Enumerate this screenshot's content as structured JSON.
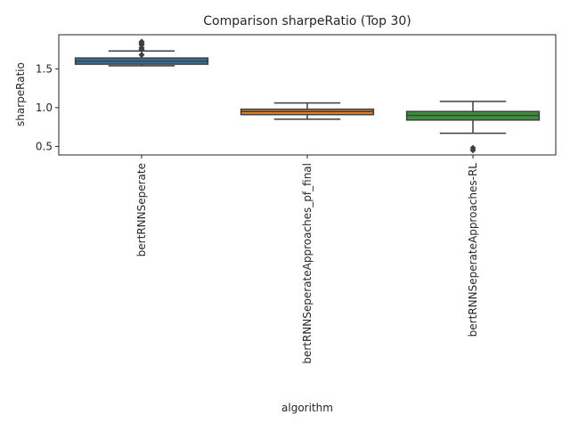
{
  "chart_data": {
    "type": "box",
    "title": "Comparison sharpeRatio (Top 30)",
    "xlabel": "algorithm",
    "ylabel": "sharpeRatio",
    "ylim": [
      0.39,
      1.94
    ],
    "yticks": [
      0.5,
      1.0,
      1.5
    ],
    "ytick_labels": [
      "0.5",
      "1.0",
      "1.5"
    ],
    "grid": false,
    "legend": "none",
    "categories": [
      "bertRNNSeperate",
      "bertRNNSeperateApproaches_pf_final",
      "bertRNNSeperateApproaches-RL"
    ],
    "colors": [
      "#3274a1",
      "#e1812c",
      "#3a923a"
    ],
    "boxes": [
      {
        "whisker_low": 1.54,
        "q1": 1.56,
        "median": 1.6,
        "q3": 1.64,
        "whisker_high": 1.73,
        "outliers": [
          1.68,
          1.75,
          1.77,
          1.81,
          1.83,
          1.85
        ]
      },
      {
        "whisker_low": 0.85,
        "q1": 0.91,
        "median": 0.95,
        "q3": 0.98,
        "whisker_high": 1.06,
        "outliers": []
      },
      {
        "whisker_low": 0.67,
        "q1": 0.84,
        "median": 0.9,
        "q3": 0.95,
        "whisker_high": 1.08,
        "outliers": [
          0.45,
          0.48
        ]
      }
    ]
  }
}
